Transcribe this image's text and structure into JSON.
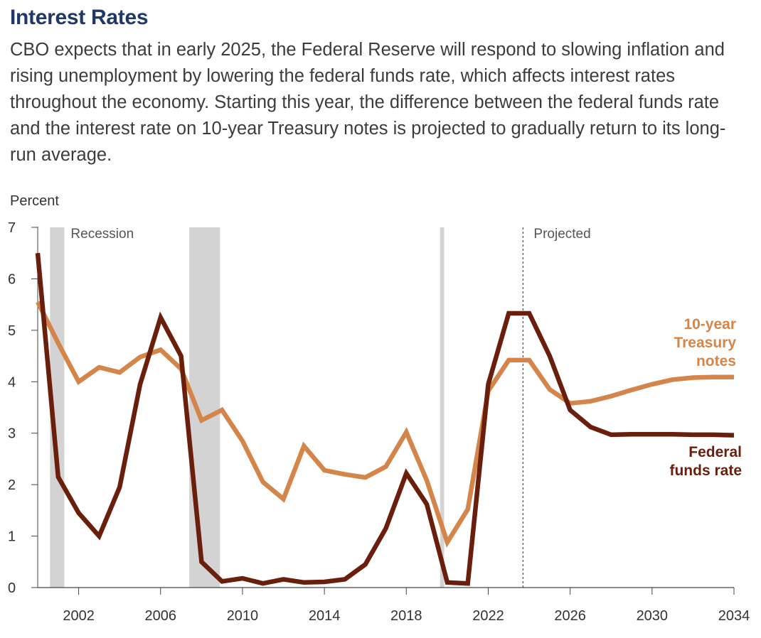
{
  "header": {
    "title": "Interest Rates",
    "subtitle": "CBO expects that in early 2025, the Federal Reserve will respond to slowing inflation and rising unemployment by lowering the federal funds rate, which affects interest rates throughout the economy. Starting this year, the difference between the federal funds rate and the interest rate on 10-year Treasury notes is projected to gradually return to its long-run average."
  },
  "chart_data": {
    "type": "line",
    "ylabel": "Percent",
    "ylim": [
      0,
      7
    ],
    "yticks": [
      "0",
      "1",
      "2",
      "3",
      "4",
      "5",
      "6",
      "7"
    ],
    "xlim": [
      2000,
      2034
    ],
    "xticks": [
      "2002",
      "2006",
      "2010",
      "2014",
      "2018",
      "2022",
      "2026",
      "2030",
      "2034"
    ],
    "x": [
      2000,
      2001,
      2002,
      2003,
      2004,
      2005,
      2006,
      2007,
      2008,
      2009,
      2010,
      2011,
      2012,
      2013,
      2014,
      2015,
      2016,
      2017,
      2018,
      2019,
      2020,
      2021,
      2022,
      2023,
      2024,
      2025,
      2026,
      2027,
      2028,
      2029,
      2030,
      2031,
      2032,
      2033,
      2034
    ],
    "series": [
      {
        "name": "Federal funds rate",
        "label_lines": [
          "Federal",
          "funds rate"
        ],
        "color": "#6a1e0c",
        "values": [
          6.5,
          2.15,
          1.45,
          1.0,
          1.95,
          3.95,
          5.25,
          4.5,
          0.5,
          0.12,
          0.18,
          0.08,
          0.16,
          0.1,
          0.11,
          0.16,
          0.45,
          1.15,
          2.22,
          1.62,
          0.1,
          0.08,
          3.95,
          5.33,
          5.33,
          4.5,
          3.45,
          3.12,
          2.97,
          2.98,
          2.98,
          2.98,
          2.97,
          2.97,
          2.96
        ]
      },
      {
        "name": "10-year Treasury notes",
        "label_lines": [
          "10-year",
          "Treasury",
          "notes"
        ],
        "color": "#d4854a",
        "values": [
          5.55,
          4.75,
          4.0,
          4.28,
          4.18,
          4.48,
          4.62,
          4.25,
          3.25,
          3.45,
          2.85,
          2.05,
          1.72,
          2.75,
          2.28,
          2.2,
          2.14,
          2.35,
          3.02,
          2.08,
          0.88,
          1.52,
          3.82,
          4.42,
          4.42,
          3.85,
          3.58,
          3.62,
          3.72,
          3.84,
          3.95,
          4.04,
          4.08,
          4.09,
          4.09
        ]
      }
    ],
    "recessions": [
      {
        "start": 2000.6,
        "end": 2001.3,
        "label": "Recession"
      },
      {
        "start": 2007.4,
        "end": 2008.9
      },
      {
        "start": 2019.65,
        "end": 2019.85
      }
    ],
    "projection_start": 2023.7,
    "projection_label": "Projected",
    "grid": false,
    "legend": "direct labels at right"
  }
}
